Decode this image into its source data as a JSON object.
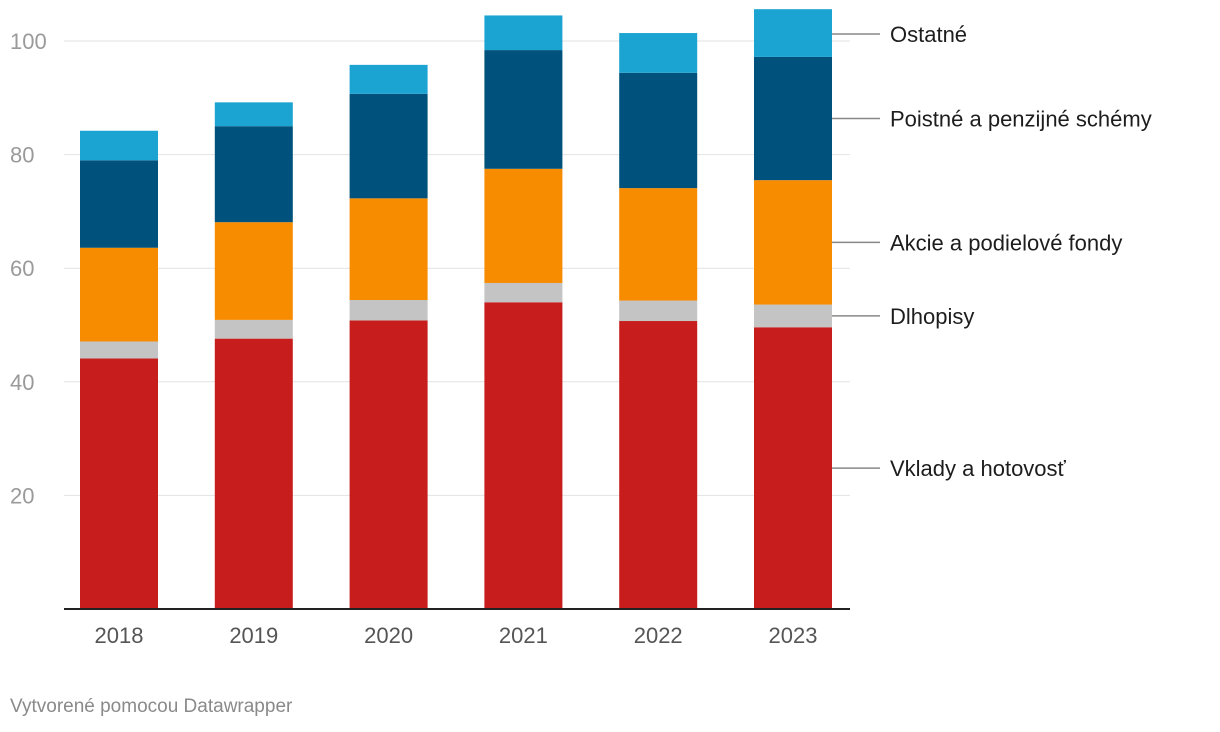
{
  "chart_data": {
    "type": "bar",
    "stacked": true,
    "categories": [
      "2018",
      "2019",
      "2020",
      "2021",
      "2022",
      "2023"
    ],
    "series": [
      {
        "name": "Vklady a hotovosť",
        "color": "#c71d1d",
        "values": [
          44.1,
          47.6,
          50.8,
          54.0,
          50.7,
          49.6
        ]
      },
      {
        "name": "Dlhopisy",
        "color": "#c4c4c4",
        "values": [
          3.0,
          3.3,
          3.6,
          3.4,
          3.6,
          4.0
        ]
      },
      {
        "name": "Akcie a podielové fondy",
        "color": "#f78c00",
        "values": [
          16.5,
          17.2,
          17.9,
          20.1,
          19.8,
          21.9
        ]
      },
      {
        "name": "Poistné a penzijné schémy",
        "color": "#00527c",
        "values": [
          15.4,
          16.9,
          18.4,
          20.9,
          20.3,
          21.7
        ]
      },
      {
        "name": "Ostatné",
        "color": "#1ba3d2",
        "values": [
          5.2,
          4.2,
          5.1,
          6.1,
          7.0,
          8.4
        ]
      }
    ],
    "yticks": [
      20,
      40,
      60,
      80,
      100
    ],
    "ylim": [
      0,
      105
    ],
    "grid": true,
    "legend": "right, direct labels",
    "xlabel": "",
    "ylabel": ""
  },
  "footer": "Vytvorené pomocou Datawrapper"
}
